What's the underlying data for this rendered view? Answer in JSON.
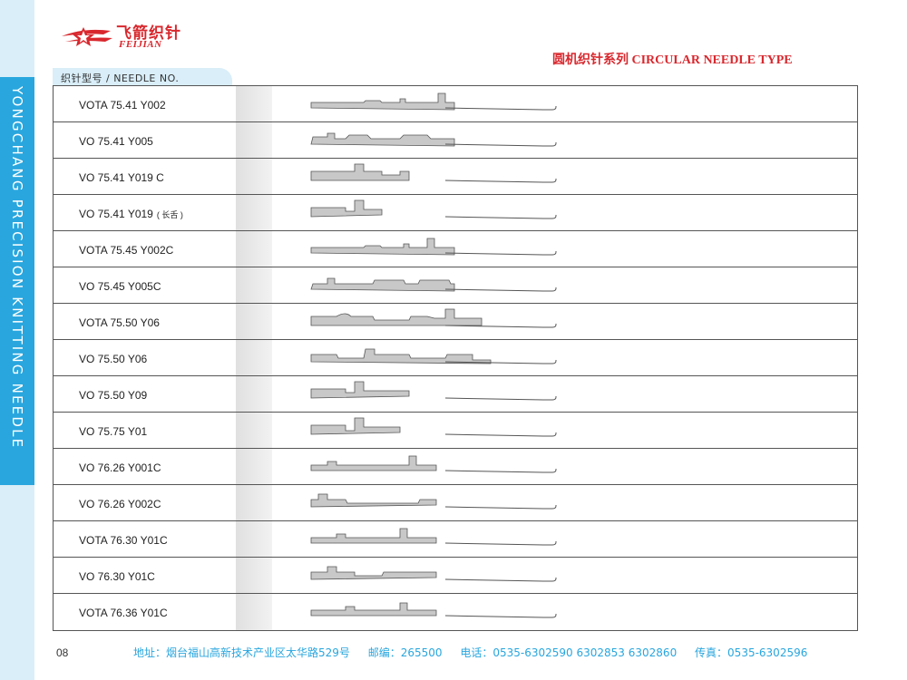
{
  "sidebar": {
    "text": "YONGCHANG PRECISION KNITTING NEEDLE"
  },
  "logo": {
    "cn": "飞箭织针",
    "en": "FEIJIAN"
  },
  "series_title": "圆机织针系列 CIRCULAR NEEDLE TYPE",
  "table": {
    "header": "织针型号 / NEEDLE NO.",
    "rows": [
      {
        "model": "VOTA 75.41 Y002",
        "note": ""
      },
      {
        "model": "VO 75.41 Y005",
        "note": ""
      },
      {
        "model": "VO 75.41 Y019 C",
        "note": ""
      },
      {
        "model": "VO 75.41 Y019",
        "note": "( 长舌 )"
      },
      {
        "model": "VOTA 75.45 Y002C",
        "note": ""
      },
      {
        "model": "VO 75.45 Y005C",
        "note": ""
      },
      {
        "model": "VOTA 75.50 Y06",
        "note": ""
      },
      {
        "model": "VO 75.50 Y06",
        "note": ""
      },
      {
        "model": "VO 75.50 Y09",
        "note": ""
      },
      {
        "model": "VO 75.75 Y01",
        "note": ""
      },
      {
        "model": "VO 76.26 Y001C",
        "note": ""
      },
      {
        "model": "VO 76.26 Y002C",
        "note": ""
      },
      {
        "model": "VOTA 76.30 Y01C",
        "note": ""
      },
      {
        "model": "VO 76.30 Y01C",
        "note": ""
      },
      {
        "model": "VOTA 76.36 Y01C",
        "note": ""
      }
    ]
  },
  "footer": {
    "page": "08",
    "address": "地址：烟台福山高新技术产业区太华路529号",
    "postcode": "邮编：265500",
    "phone": "电话：0535-6302590 6302853 6302860",
    "fax": "传真：0535-6302596"
  },
  "colors": {
    "accent_blue": "#29a6de",
    "brand_red": "#d8282e",
    "light_blue": "#d9eef8"
  }
}
